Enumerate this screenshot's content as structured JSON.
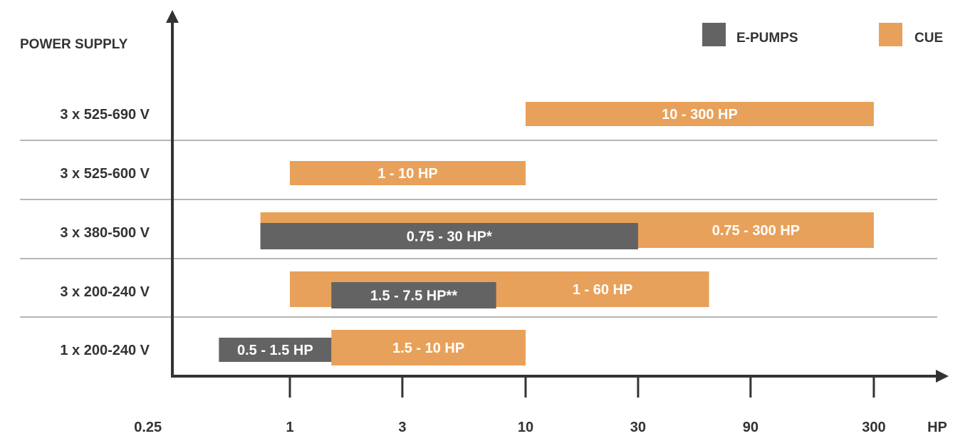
{
  "chart_data": {
    "type": "bar",
    "orientation": "horizontal-range",
    "title": "POWER SUPPLY",
    "xlabel": "HP",
    "x_scale": "log",
    "xlim": [
      0.25,
      300
    ],
    "x_ticks": [
      "0.25",
      "1",
      "3",
      "10",
      "30",
      "90",
      "300"
    ],
    "x_tick_values": [
      0.25,
      1,
      3,
      10,
      30,
      90,
      300
    ],
    "legend_placement": "top-right",
    "legend": [
      {
        "name": "E-PUMPS",
        "color": "#636363"
      },
      {
        "name": "CUE",
        "color": "#E8A15A"
      }
    ],
    "categories": [
      "3 x 525-690 V",
      "3 x 525-600 V",
      "3 x 380-500 V",
      "3 x 200-240 V",
      "1 x 200-240 V"
    ],
    "series": [
      {
        "name": "CUE",
        "color": "#E8A15A",
        "ranges": [
          {
            "category": "3 x 525-690 V",
            "from": 10,
            "to": 300,
            "label": "10 - 300 HP"
          },
          {
            "category": "3 x 525-600 V",
            "from": 1,
            "to": 10,
            "label": "1 - 10 HP"
          },
          {
            "category": "3 x 380-500 V",
            "from": 0.75,
            "to": 300,
            "label": "0.75 - 300 HP"
          },
          {
            "category": "3 x 200-240 V",
            "from": 1,
            "to": 60,
            "label": "1 - 60 HP"
          },
          {
            "category": "1 x 200-240 V",
            "from": 1.5,
            "to": 10,
            "label": "1.5 - 10 HP"
          }
        ]
      },
      {
        "name": "E-PUMPS",
        "color": "#636363",
        "ranges": [
          {
            "category": "3 x 380-500 V",
            "from": 0.75,
            "to": 30,
            "label": "0.75 - 30 HP*"
          },
          {
            "category": "3 x 200-240 V",
            "from": 1.5,
            "to": 7.5,
            "label": "1.5 - 7.5 HP**"
          },
          {
            "category": "1 x 200-240 V",
            "from": 0.5,
            "to": 1.5,
            "label": "0.5 - 1.5 HP"
          }
        ]
      }
    ]
  }
}
